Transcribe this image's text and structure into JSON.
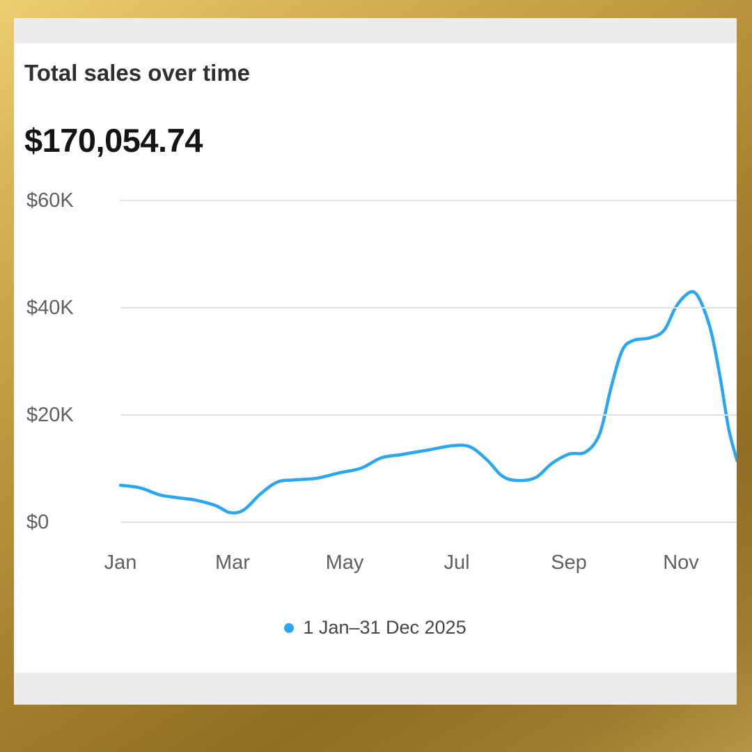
{
  "header": {
    "title": "Total sales over time",
    "total": "$170,054.74"
  },
  "legend": {
    "label": "1 Jan–31 Dec 2025",
    "dot_color": "#2ba6f5"
  },
  "colors": {
    "line": "#2ba6f5",
    "grid": "#e3e3e3",
    "axis_text": "#5d6063",
    "card_bg": "#ffffff",
    "strip_bg": "#ececec"
  },
  "chart_data": {
    "type": "line",
    "title": "Total sales over time",
    "total": "$170,054.74",
    "ylim": [
      0,
      60000
    ],
    "xlim_months": [
      0,
      11
    ],
    "grid": true,
    "legend_position": "bottom",
    "y_ticks": [
      {
        "value": 0,
        "label": "$0"
      },
      {
        "value": 20000,
        "label": "$20K"
      },
      {
        "value": 40000,
        "label": "$40K"
      },
      {
        "value": 60000,
        "label": "$60K"
      }
    ],
    "x_ticks": [
      {
        "month": 0,
        "label": "Jan"
      },
      {
        "month": 2,
        "label": "Mar"
      },
      {
        "month": 4,
        "label": "May"
      },
      {
        "month": 6,
        "label": "Jul"
      },
      {
        "month": 8,
        "label": "Sep"
      },
      {
        "month": 10,
        "label": "Nov"
      }
    ],
    "series": [
      {
        "name": "1 Jan–31 Dec 2025",
        "color": "#2ba6f5",
        "x_months": [
          0.0,
          0.35,
          0.7,
          1.0,
          1.35,
          1.7,
          1.95,
          2.2,
          2.5,
          2.8,
          3.1,
          3.5,
          3.9,
          4.3,
          4.65,
          5.0,
          5.5,
          5.95,
          6.25,
          6.55,
          6.8,
          7.05,
          7.4,
          7.7,
          8.0,
          8.3,
          8.55,
          8.75,
          8.95,
          9.15,
          9.45,
          9.7,
          9.9,
          10.1,
          10.25,
          10.4,
          10.55,
          10.7,
          10.85,
          11.0
        ],
        "values": [
          6900,
          6400,
          5100,
          4600,
          4100,
          3100,
          1800,
          2300,
          5300,
          7500,
          7900,
          8200,
          9200,
          10100,
          12000,
          12600,
          13500,
          14300,
          14000,
          11500,
          8700,
          7800,
          8300,
          11000,
          12700,
          13100,
          16500,
          25000,
          32000,
          33900,
          34400,
          35800,
          40000,
          42500,
          42800,
          40000,
          35000,
          27000,
          17500,
          11500
        ]
      }
    ]
  }
}
